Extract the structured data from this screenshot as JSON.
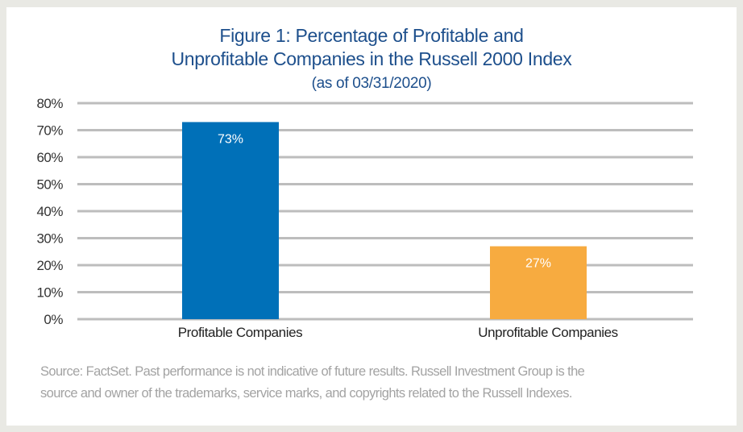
{
  "chart_data": {
    "type": "bar",
    "title": "Figure 1: Percentage of Profitable and Unprofitable Companies in the Russell 2000 Index",
    "title_lines": [
      "Figure 1: Percentage of Profitable and",
      "Unprofitable Companies in the Russell 2000 Index"
    ],
    "subtitle": "(as of 03/31/2020)",
    "categories": [
      "Profitable Companies",
      "Unprofitable Companies"
    ],
    "values": [
      73,
      27
    ],
    "data_labels": [
      "73%",
      "27%"
    ],
    "colors": [
      "#0070b8",
      "#f7ab40"
    ],
    "ylim": [
      0,
      80
    ],
    "yticks": [
      0,
      10,
      20,
      30,
      40,
      50,
      60,
      70,
      80
    ],
    "ytick_labels": [
      "0%",
      "10%",
      "20%",
      "30%",
      "40%",
      "50%",
      "60%",
      "70%",
      "80%"
    ],
    "grid": true,
    "grid_color": "#bdbdbd",
    "xlabel": "",
    "ylabel": ""
  },
  "source_lines": [
    "Source: FactSet. Past performance is not indicative of future results. Russell Investment Group is the",
    "source and owner of the trademarks, service marks, and copyrights related to the Russell Indexes."
  ]
}
